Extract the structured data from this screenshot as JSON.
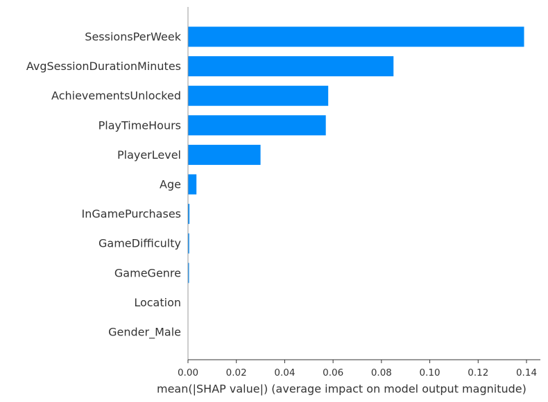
{
  "chart_data": {
    "type": "bar",
    "orientation": "horizontal",
    "title": "",
    "xlabel": "mean(|SHAP value|) (average impact on model output magnitude)",
    "ylabel": "",
    "categories": [
      "SessionsPerWeek",
      "AvgSessionDurationMinutes",
      "AchievementsUnlocked",
      "PlayTimeHours",
      "PlayerLevel",
      "Age",
      "InGamePurchases",
      "GameDifficulty",
      "GameGenre",
      "Location",
      "Gender_Male"
    ],
    "values": [
      0.139,
      0.085,
      0.058,
      0.057,
      0.03,
      0.0035,
      0.0006,
      0.0005,
      0.0002,
      0.0,
      0.0
    ],
    "xlim": [
      0,
      0.146
    ],
    "xticks": [
      0.0,
      0.02,
      0.04,
      0.06,
      0.08,
      0.1,
      0.12,
      0.14
    ],
    "xtick_labels": [
      "0.00",
      "0.02",
      "0.04",
      "0.06",
      "0.08",
      "0.10",
      "0.12",
      "0.14"
    ],
    "grid": false,
    "legend": "none",
    "bar_color": "#008bfb",
    "text_color": "#333333",
    "axis_color": "#333333"
  }
}
